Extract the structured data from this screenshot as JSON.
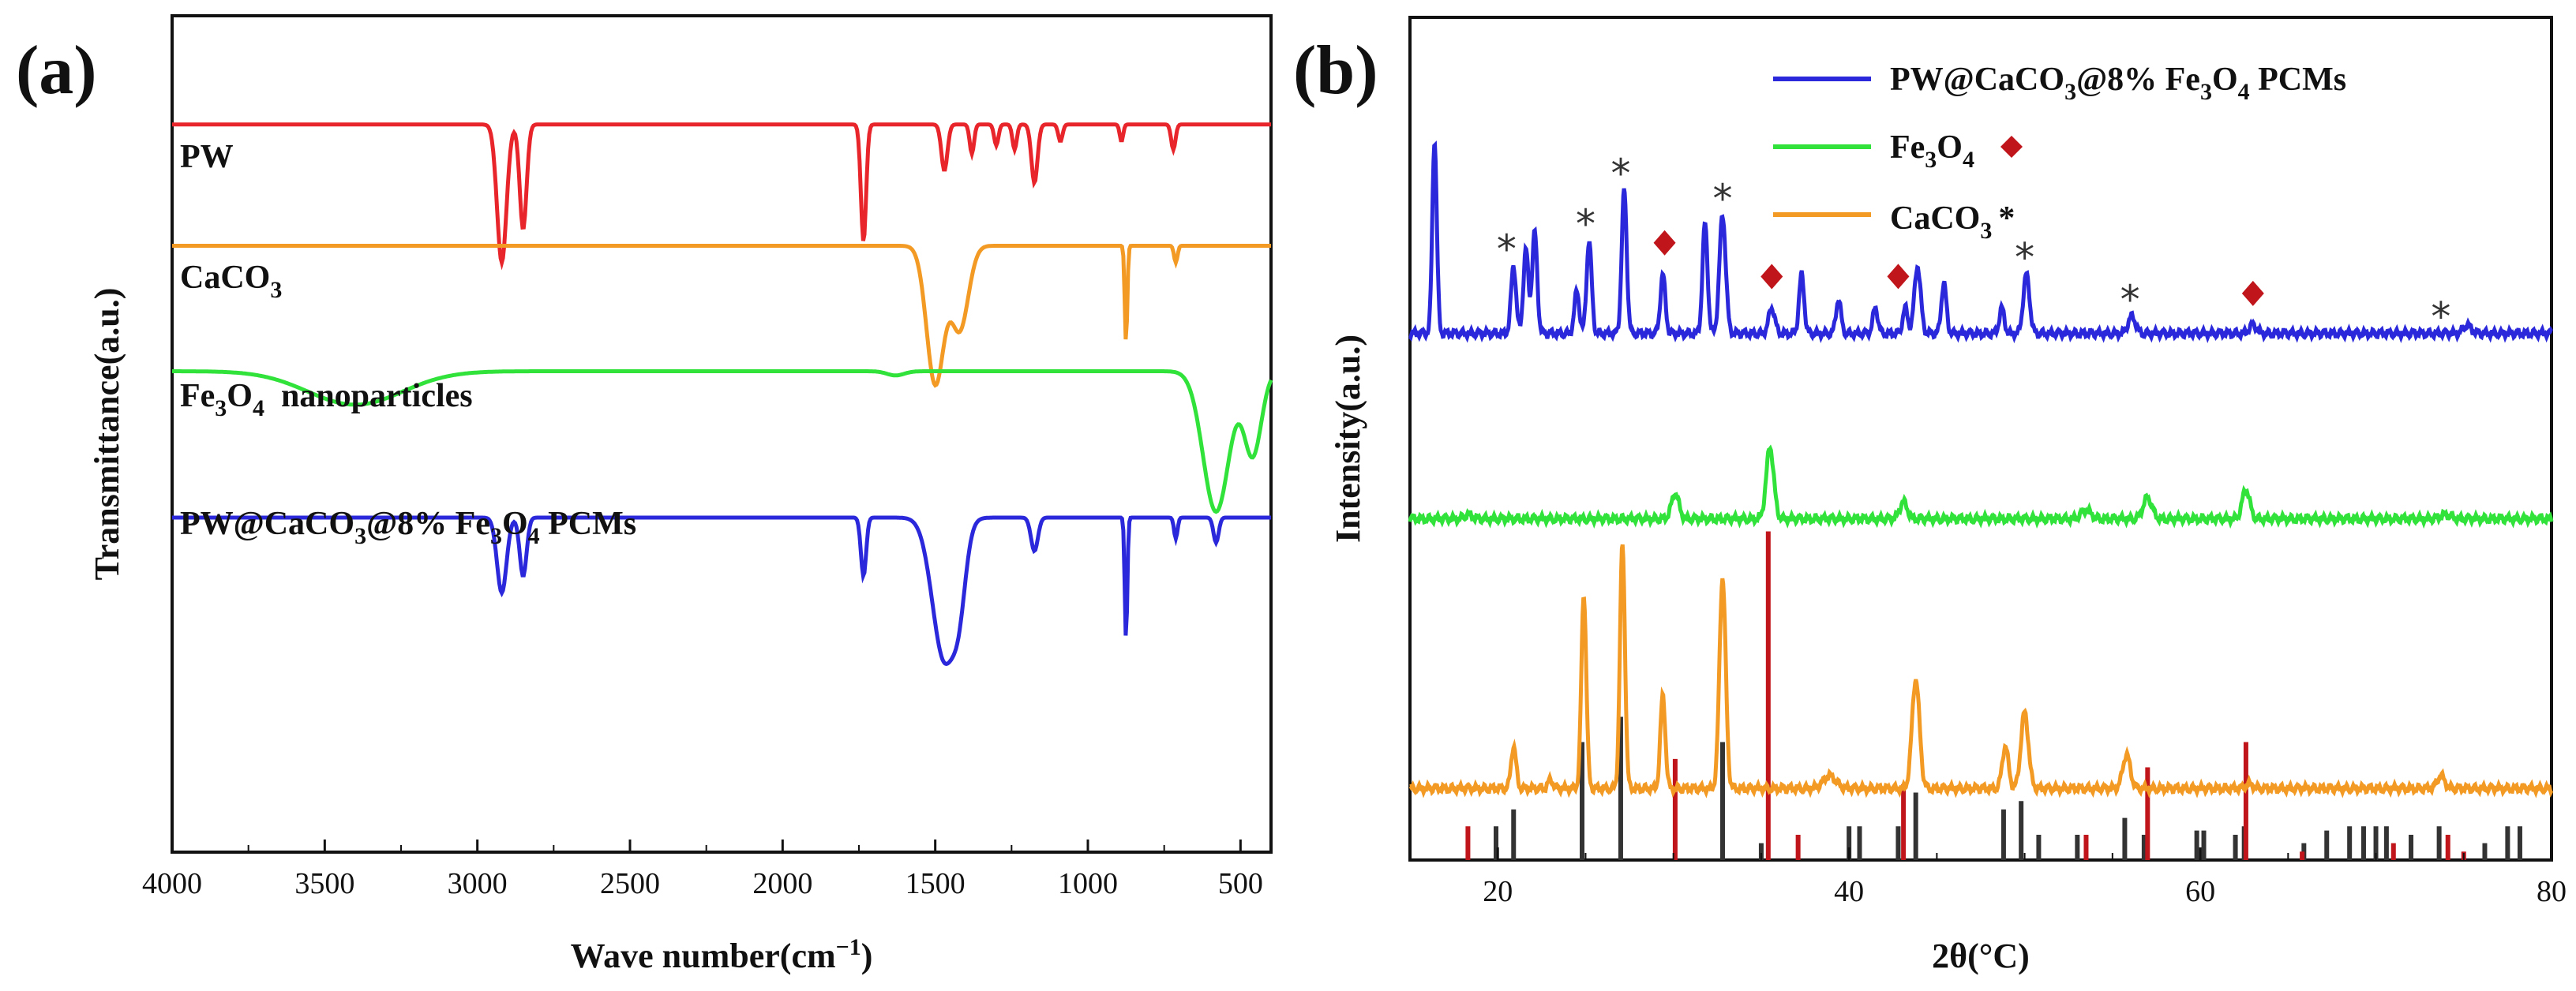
{
  "panel_a": {
    "label": "(a)",
    "chart_data": {
      "type": "line",
      "xlabel_main": "Wave number(cm",
      "xlabel_sup": "−1",
      "xlabel_close": ")",
      "ylabel": "Transmittance(a.u.)",
      "xlim": [
        4000,
        400
      ],
      "x_ticks": [
        "4000",
        "3500",
        "3000",
        "2500",
        "2000",
        "1500",
        "1000",
        "500"
      ],
      "x_tick_values": [
        4000,
        3500,
        3000,
        2500,
        2000,
        1500,
        1000,
        500
      ],
      "ylim": [
        0,
        1
      ],
      "series": [
        {
          "name": "PW",
          "color": "#e8252a",
          "baseline": 0.87,
          "peaks": [
            [
              2920,
              0.165,
              22
            ],
            [
              2850,
              0.125,
              16
            ],
            [
              1735,
              0.14,
              12
            ],
            [
              1470,
              0.055,
              14
            ],
            [
              1380,
              0.035,
              10
            ],
            [
              1300,
              0.025,
              10
            ],
            [
              1240,
              0.03,
              10
            ],
            [
              1175,
              0.07,
              14
            ],
            [
              1090,
              0.02,
              10
            ],
            [
              890,
              0.02,
              8
            ],
            [
              720,
              0.03,
              10
            ]
          ]
        },
        {
          "name": "CaCO3",
          "color": "#f29a24",
          "baseline": 0.725,
          "peaks": [
            [
              1500,
              0.165,
              40
            ],
            [
              1420,
              0.1,
              40
            ],
            [
              875,
              0.115,
              6
            ],
            [
              712,
              0.02,
              8
            ]
          ]
        },
        {
          "name": "Fe3O4 nanoparticles",
          "color": "#31e23b",
          "baseline": 0.575,
          "peaks": [
            [
              3400,
              0.04,
              220
            ],
            [
              1630,
              0.005,
              40
            ],
            [
              580,
              0.168,
              60
            ],
            [
              460,
              0.1,
              40
            ]
          ]
        },
        {
          "name": "PW@CaCO3@8% Fe3O4 PCMs",
          "color": "#2a28da",
          "baseline": 0.4,
          "peaks": [
            [
              2920,
              0.09,
              22
            ],
            [
              2850,
              0.07,
              16
            ],
            [
              1735,
              0.07,
              12
            ],
            [
              1470,
              0.17,
              55
            ],
            [
              1420,
              0.06,
              30
            ],
            [
              1175,
              0.04,
              16
            ],
            [
              875,
              0.145,
              6
            ],
            [
              712,
              0.025,
              8
            ],
            [
              580,
              0.03,
              12
            ]
          ]
        }
      ]
    },
    "labels": {
      "pw": "PW",
      "caco3_main": "CaCO",
      "caco3_sub": "3",
      "fe_main": "Fe",
      "fe_sub1": "3",
      "fe_mid": "O",
      "fe_sub2": "4",
      "fe_tail": "  nanoparticles",
      "comp_a": "PW@CaCO",
      "comp_sub1": "3",
      "comp_b": "@8% Fe",
      "comp_sub2": "3",
      "comp_c": "O",
      "comp_sub3": "4",
      "comp_d": " PCMs"
    }
  },
  "panel_b": {
    "label": "(b)",
    "chart_data": {
      "type": "line",
      "xlabel": "2θ(°C)",
      "ylabel": "Intensity(a.u.)",
      "xlim": [
        15,
        80
      ],
      "x_ticks": [
        "20",
        "40",
        "60",
        "80"
      ],
      "x_tick_values": [
        20,
        40,
        60,
        80
      ],
      "minor_ticks": [
        25,
        30,
        35,
        45,
        50,
        55,
        65,
        70,
        75
      ],
      "series": [
        {
          "name": "PW@CaCO3@8% Fe3O4 PCMs",
          "color": "#2a28da",
          "baseline": 0.625,
          "peaks": [
            [
              16.4,
              0.23,
              0.18
            ],
            [
              20.9,
              0.08,
              0.2
            ],
            [
              21.6,
              0.1,
              0.2
            ],
            [
              22.1,
              0.12,
              0.2
            ],
            [
              24.5,
              0.05,
              0.2
            ],
            [
              25.2,
              0.11,
              0.2
            ],
            [
              27.2,
              0.17,
              0.2
            ],
            [
              29.4,
              0.07,
              0.2
            ],
            [
              31.8,
              0.13,
              0.2
            ],
            [
              32.8,
              0.14,
              0.25
            ],
            [
              35.6,
              0.03,
              0.25
            ],
            [
              37.3,
              0.07,
              0.2
            ],
            [
              39.4,
              0.04,
              0.2
            ],
            [
              41.5,
              0.03,
              0.2
            ],
            [
              43.2,
              0.03,
              0.2
            ],
            [
              43.9,
              0.08,
              0.25
            ],
            [
              45.4,
              0.06,
              0.2
            ],
            [
              48.7,
              0.03,
              0.2
            ],
            [
              50.1,
              0.07,
              0.25
            ],
            [
              56.1,
              0.02,
              0.3
            ],
            [
              63.0,
              0.01,
              0.3
            ],
            [
              75.2,
              0.01,
              0.3
            ]
          ]
        },
        {
          "name": "Fe3O4",
          "color": "#31e23b",
          "baseline": 0.405,
          "peaks": [
            [
              18.3,
              0.005,
              0.3
            ],
            [
              30.1,
              0.03,
              0.3
            ],
            [
              35.5,
              0.085,
              0.3
            ],
            [
              43.1,
              0.02,
              0.3
            ],
            [
              53.5,
              0.01,
              0.4
            ],
            [
              57.0,
              0.025,
              0.35
            ],
            [
              62.6,
              0.035,
              0.3
            ],
            [
              74.0,
              0.005,
              0.4
            ]
          ]
        },
        {
          "name": "CaCO3",
          "color": "#f29a24",
          "baseline": 0.085,
          "peaks": [
            [
              20.9,
              0.05,
              0.2
            ],
            [
              23.0,
              0.01,
              0.2
            ],
            [
              24.9,
              0.23,
              0.2
            ],
            [
              27.1,
              0.29,
              0.2
            ],
            [
              29.4,
              0.11,
              0.2
            ],
            [
              32.8,
              0.25,
              0.25
            ],
            [
              38.9,
              0.015,
              0.5
            ],
            [
              43.8,
              0.13,
              0.3
            ],
            [
              48.9,
              0.05,
              0.25
            ],
            [
              50.0,
              0.09,
              0.3
            ],
            [
              55.8,
              0.04,
              0.3
            ],
            [
              62.8,
              0.005,
              0.3
            ],
            [
              73.7,
              0.015,
              0.3
            ]
          ]
        }
      ],
      "reference_sticks": {
        "caco3": {
          "color": "#333333",
          "x": [
            19.9,
            20.9,
            24.8,
            27.0,
            32.8,
            35.0,
            40.0,
            40.6,
            42.8,
            43.8,
            48.8,
            49.8,
            50.8,
            53.0,
            55.7,
            56.8,
            59.8,
            60.2,
            62.0,
            62.5,
            65.9,
            67.2,
            68.5,
            69.3,
            70.0,
            70.6,
            72.0,
            73.6,
            76.2,
            77.5,
            78.2
          ],
          "h": [
            0.04,
            0.06,
            0.14,
            0.17,
            0.14,
            0.02,
            0.04,
            0.04,
            0.04,
            0.08,
            0.06,
            0.07,
            0.03,
            0.03,
            0.05,
            0.03,
            0.035,
            0.035,
            0.03,
            0.04,
            0.02,
            0.035,
            0.04,
            0.04,
            0.04,
            0.04,
            0.03,
            0.04,
            0.02,
            0.04,
            0.04
          ]
        },
        "fe3o4": {
          "color": "#c0151a",
          "x": [
            18.3,
            30.1,
            35.4,
            37.1,
            43.1,
            53.5,
            57.0,
            62.6,
            65.8,
            71.0,
            74.1,
            75.0
          ],
          "h": [
            0.04,
            0.12,
            0.39,
            0.03,
            0.09,
            0.03,
            0.11,
            0.14,
            0.01,
            0.02,
            0.03,
            0.01
          ]
        }
      },
      "star_markers_at": [
        20.5,
        25.0,
        27.0,
        32.8,
        50.0,
        56.0,
        73.7
      ],
      "diamond_markers_at": [
        29.5,
        35.6,
        42.8,
        63.0
      ],
      "legend_position": "top-right"
    },
    "legend": {
      "item1_a": "PW@CaCO",
      "item1_sub1": "3",
      "item1_b": "@8% Fe",
      "item1_sub2": "3",
      "item1_c": "O",
      "item1_sub3": "4",
      "item1_d": " PCMs",
      "item2_a": "Fe",
      "item2_sub1": "3",
      "item2_b": "O",
      "item2_sub2": "4",
      "item3_a": "CaCO",
      "item3_sub": "3",
      "item3_star": "*",
      "star_symbol": "*"
    }
  }
}
